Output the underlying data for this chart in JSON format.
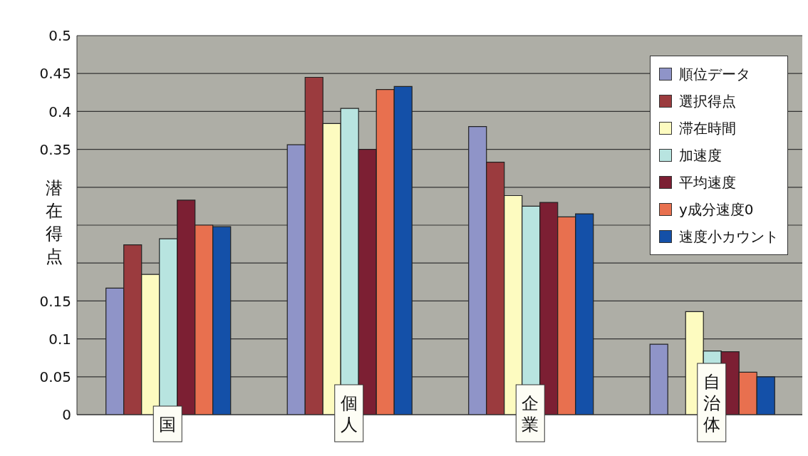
{
  "chart_data": {
    "type": "bar",
    "ylabel": "潜在得点",
    "categories": [
      "国",
      "個人",
      "企業",
      "自治体"
    ],
    "series": [
      {
        "name": "順位データ",
        "color": "#8f94c8",
        "values": [
          0.167,
          0.356,
          0.38,
          0.093
        ]
      },
      {
        "name": "選択得点",
        "color": "#9b3b3e",
        "values": [
          0.224,
          0.445,
          0.333,
          0
        ]
      },
      {
        "name": "滞在時間",
        "color": "#fdfbc0",
        "values": [
          0.185,
          0.384,
          0.289,
          0.136
        ]
      },
      {
        "name": "加速度",
        "color": "#b8e4e0",
        "values": [
          0.232,
          0.404,
          0.275,
          0.084
        ]
      },
      {
        "name": "平均速度",
        "color": "#7c1f33",
        "values": [
          0.283,
          0.35,
          0.28,
          0.083
        ]
      },
      {
        "name": "y成分速度0",
        "color": "#e8704f",
        "values": [
          0.25,
          0.429,
          0.261,
          0.056
        ]
      },
      {
        "name": "速度小カウント",
        "color": "#1450a8",
        "values": [
          0.248,
          0.433,
          0.265,
          0.05
        ]
      }
    ],
    "ylim": [
      0,
      0.5
    ],
    "yticks": [
      0,
      0.05,
      0.1,
      0.15,
      {
        "value": 0.2,
        "label": null
      },
      {
        "value": 0.25,
        "label": null
      },
      {
        "value": 0.3,
        "label": null
      },
      0.35,
      0.4,
      0.45,
      0.5
    ],
    "grid": "y",
    "legend": "top right"
  }
}
